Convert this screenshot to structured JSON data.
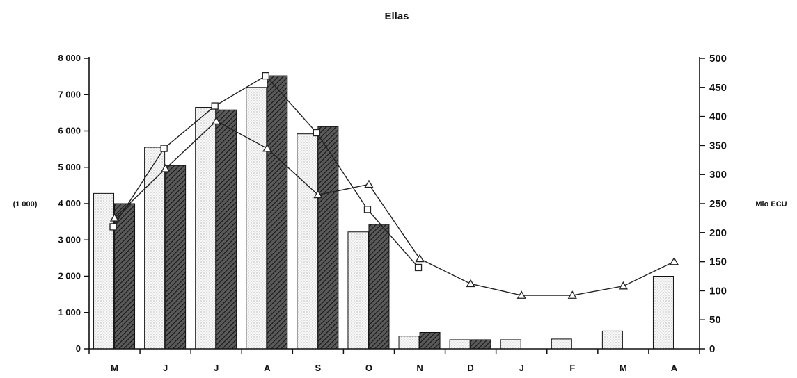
{
  "chart_data": {
    "type": "bar",
    "title": "Ellas",
    "categories": [
      "M",
      "J",
      "J",
      "A",
      "S",
      "O",
      "N",
      "D",
      "J",
      "F",
      "M",
      "A"
    ],
    "left_axis": {
      "label": "(1 000)",
      "ylim": [
        0,
        8000
      ],
      "ticks": [
        0,
        1000,
        2000,
        3000,
        4000,
        5000,
        6000,
        7000,
        8000
      ],
      "tick_labels": [
        "0",
        "1 000",
        "2 000",
        "3 000",
        "4 000",
        "5 000",
        "6 000",
        "7 000",
        "8 000"
      ]
    },
    "right_axis": {
      "label": "Mio ECU",
      "ylim": [
        0,
        500
      ],
      "ticks": [
        0,
        50,
        100,
        150,
        200,
        250,
        300,
        350,
        400,
        450,
        500
      ],
      "tick_labels": [
        "0",
        "50",
        "100",
        "150",
        "200",
        "250",
        "300",
        "350",
        "400",
        "450",
        "500"
      ]
    },
    "bar_series": [
      {
        "style": "light-dotted",
        "axis": "left",
        "values": [
          4280,
          5550,
          6650,
          7200,
          5920,
          3220,
          350,
          250,
          250,
          270,
          490,
          2000
        ]
      },
      {
        "style": "dark-hatched",
        "axis": "left",
        "values": [
          4000,
          5050,
          6580,
          7520,
          6120,
          3430,
          450,
          250,
          null,
          null,
          null,
          null
        ]
      }
    ],
    "line_series": [
      {
        "marker": "square",
        "axis": "right",
        "values": [
          210,
          345,
          418,
          470,
          372,
          240,
          140,
          null,
          null,
          null,
          null,
          null
        ]
      },
      {
        "marker": "triangle",
        "axis": "right",
        "values": [
          225,
          310,
          392,
          345,
          265,
          283,
          155,
          112,
          92,
          92,
          108,
          150
        ]
      }
    ],
    "grid": false
  },
  "style": {
    "axis_color": "#111111",
    "light_bar_fill": "#f4f4f4",
    "dark_bar_fill": "#3a3a3a",
    "line_color": "#222222",
    "marker_fill": "#ffffff"
  }
}
